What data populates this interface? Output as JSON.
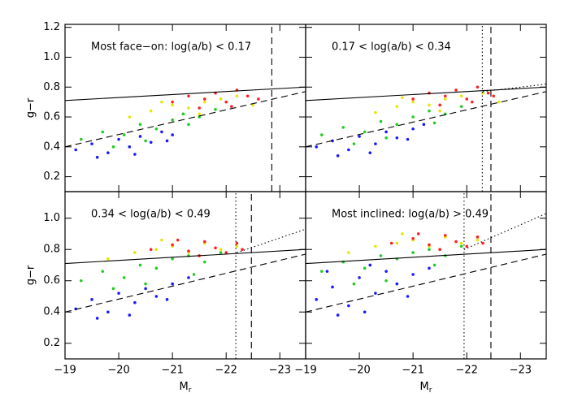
{
  "chart_data": [
    {
      "type": "scatter",
      "annotation": "Most face−on: log(a/b) < 0.17",
      "ylabel": "g−r",
      "xlim": [
        -19,
        -23.48
      ],
      "ylim": [
        0.1,
        1.22
      ],
      "xticks": [
        -19,
        -20,
        -21,
        -22,
        -23
      ],
      "show_xtick_labels": false,
      "yticks": [
        0.2,
        0.4,
        0.6,
        0.8,
        {
          "value": 1,
          "label": "1.0"
        },
        1.2
      ],
      "show_ytick_labels": true,
      "series": [
        {
          "color": "#1a1aff",
          "x": [
            -19.2,
            -19.5,
            -19.8,
            -20.0,
            -20.2,
            -20.4,
            -20.6,
            -20.8,
            -21.0,
            -19.6,
            -20.3,
            -20.9
          ],
          "y": [
            0.38,
            0.42,
            0.36,
            0.45,
            0.4,
            0.47,
            0.43,
            0.5,
            0.48,
            0.33,
            0.35,
            0.44
          ]
        },
        {
          "color": "#22cc22",
          "x": [
            -19.3,
            -19.7,
            -20.1,
            -20.4,
            -20.7,
            -21.0,
            -21.2,
            -21.5,
            -20.5,
            -19.9,
            -21.3,
            -21.8
          ],
          "y": [
            0.45,
            0.5,
            0.48,
            0.55,
            0.52,
            0.58,
            0.62,
            0.6,
            0.44,
            0.4,
            0.55,
            0.65
          ]
        },
        {
          "color": "#e6e600",
          "x": [
            -20.2,
            -20.6,
            -21.0,
            -21.3,
            -21.6,
            -21.9,
            -22.2,
            -20.8,
            -21.5,
            -22.5
          ],
          "y": [
            0.6,
            0.64,
            0.68,
            0.66,
            0.7,
            0.72,
            0.74,
            0.7,
            0.62,
            0.68
          ]
        },
        {
          "color": "#ff2020",
          "x": [
            -21.0,
            -21.3,
            -21.6,
            -21.8,
            -22.0,
            -22.2,
            -22.4,
            -21.5,
            -22.1,
            -22.6
          ],
          "y": [
            0.7,
            0.74,
            0.72,
            0.76,
            0.7,
            0.78,
            0.74,
            0.66,
            0.67,
            0.72
          ]
        }
      ],
      "lines": [
        {
          "style": "solid",
          "x": [
            -19,
            -23.48
          ],
          "y": [
            0.71,
            0.8
          ]
        },
        {
          "style": "dashed",
          "x": [
            -19,
            -23.48
          ],
          "y": [
            0.4,
            0.77
          ]
        },
        {
          "style": "dashed",
          "x": [
            -22.85,
            -22.85
          ],
          "y": [
            0.1,
            1.22
          ]
        }
      ]
    },
    {
      "type": "scatter",
      "annotation": "0.17 < log(a/b) < 0.34",
      "xlim": [
        -19,
        -23.48
      ],
      "ylim": [
        0.1,
        1.22
      ],
      "xticks": [
        -19,
        -20,
        -21,
        -22,
        -23
      ],
      "show_xtick_labels": false,
      "yticks": [
        0.2,
        0.4,
        0.6,
        0.8,
        1,
        1.2
      ],
      "show_ytick_labels": false,
      "series": [
        {
          "color": "#1a1aff",
          "x": [
            -19.2,
            -19.5,
            -19.8,
            -20.0,
            -20.3,
            -20.5,
            -20.7,
            -21.0,
            -19.6,
            -20.2,
            -20.9,
            -21.2
          ],
          "y": [
            0.4,
            0.44,
            0.38,
            0.47,
            0.42,
            0.5,
            0.46,
            0.52,
            0.34,
            0.36,
            0.45,
            0.55
          ]
        },
        {
          "color": "#22cc22",
          "x": [
            -19.3,
            -19.7,
            -20.1,
            -20.4,
            -20.7,
            -21.0,
            -21.3,
            -21.6,
            -20.5,
            -19.9,
            -21.4,
            -21.9
          ],
          "y": [
            0.48,
            0.53,
            0.5,
            0.57,
            0.55,
            0.6,
            0.64,
            0.62,
            0.46,
            0.42,
            0.56,
            0.67
          ]
        },
        {
          "color": "#e6e600",
          "x": [
            -20.3,
            -20.7,
            -21.0,
            -21.3,
            -21.6,
            -21.9,
            -22.3,
            -20.8,
            -21.5,
            -22.6
          ],
          "y": [
            0.63,
            0.67,
            0.7,
            0.68,
            0.72,
            0.74,
            0.76,
            0.73,
            0.64,
            0.7
          ]
        },
        {
          "color": "#ff2020",
          "x": [
            -21.0,
            -21.3,
            -21.6,
            -21.8,
            -22.0,
            -22.2,
            -22.4,
            -21.5,
            -22.1,
            -22.5
          ],
          "y": [
            0.72,
            0.76,
            0.74,
            0.78,
            0.72,
            0.8,
            0.76,
            0.68,
            0.7,
            0.74
          ]
        }
      ],
      "lines": [
        {
          "style": "solid",
          "x": [
            -19,
            -23.48
          ],
          "y": [
            0.71,
            0.8
          ]
        },
        {
          "style": "dashed",
          "x": [
            -19,
            -23.48
          ],
          "y": [
            0.4,
            0.77
          ]
        },
        {
          "style": "dotted",
          "x": [
            -22.3,
            -23.48
          ],
          "y": [
            0.77,
            0.82
          ]
        },
        {
          "style": "dotted",
          "x": [
            -22.29,
            -22.29
          ],
          "y": [
            0.1,
            1.22
          ]
        },
        {
          "style": "dashed",
          "x": [
            -22.45,
            -22.45
          ],
          "y": [
            0.1,
            1.22
          ]
        }
      ]
    },
    {
      "type": "scatter",
      "annotation": "0.34 < log(a/b) < 0.49",
      "ylabel": "g−r",
      "xlabel": "M",
      "xlabel_sub": "r",
      "xlim": [
        -19,
        -23.48
      ],
      "ylim": [
        0.1,
        1.17
      ],
      "xticks": [
        {
          "value": -19,
          "label": "−19"
        },
        {
          "value": -20,
          "label": "−20"
        },
        {
          "value": -21,
          "label": "−21"
        },
        {
          "value": -22,
          "label": "−22"
        },
        {
          "value": -23,
          "label": "−23"
        }
      ],
      "show_xtick_labels": true,
      "yticks": [
        0.2,
        0.4,
        0.6,
        0.8,
        {
          "value": 1,
          "label": "1.0"
        }
      ],
      "show_ytick_labels": true,
      "series": [
        {
          "color": "#1a1aff",
          "x": [
            -19.2,
            -19.5,
            -19.8,
            -20.0,
            -20.3,
            -20.5,
            -20.7,
            -21.0,
            -19.6,
            -20.2,
            -20.9,
            -21.3
          ],
          "y": [
            0.42,
            0.48,
            0.4,
            0.52,
            0.46,
            0.55,
            0.5,
            0.58,
            0.36,
            0.38,
            0.48,
            0.62
          ]
        },
        {
          "color": "#22cc22",
          "x": [
            -19.3,
            -19.7,
            -20.1,
            -20.4,
            -20.7,
            -21.0,
            -21.3,
            -21.6,
            -20.5,
            -19.9,
            -21.4,
            -21.9
          ],
          "y": [
            0.6,
            0.66,
            0.62,
            0.7,
            0.68,
            0.74,
            0.76,
            0.72,
            0.58,
            0.55,
            0.64,
            0.78
          ]
        },
        {
          "color": "#e6e600",
          "x": [
            -19.8,
            -20.3,
            -20.7,
            -21.0,
            -21.3,
            -21.6,
            -21.9,
            -22.2,
            -20.8,
            -21.5
          ],
          "y": [
            0.74,
            0.78,
            0.8,
            0.82,
            0.78,
            0.84,
            0.8,
            0.82,
            0.86,
            0.76
          ]
        },
        {
          "color": "#ff2020",
          "x": [
            -20.6,
            -21.0,
            -21.3,
            -21.6,
            -21.8,
            -22.0,
            -22.2,
            -21.5,
            -21.1,
            -22.3
          ],
          "y": [
            0.8,
            0.83,
            0.79,
            0.85,
            0.81,
            0.78,
            0.84,
            0.76,
            0.86,
            0.8
          ]
        }
      ],
      "lines": [
        {
          "style": "solid",
          "x": [
            -19,
            -23.48
          ],
          "y": [
            0.71,
            0.8
          ]
        },
        {
          "style": "dashed",
          "x": [
            -19,
            -23.48
          ],
          "y": [
            0.4,
            0.77
          ]
        },
        {
          "style": "dotted",
          "x": [
            -22.2,
            -23.48
          ],
          "y": [
            0.78,
            0.93
          ]
        },
        {
          "style": "dotted",
          "x": [
            -22.18,
            -22.18
          ],
          "y": [
            0.1,
            1.17
          ]
        },
        {
          "style": "dashed",
          "x": [
            -22.47,
            -22.47
          ],
          "y": [
            0.1,
            1.17
          ]
        }
      ]
    },
    {
      "type": "scatter",
      "annotation": "Most inclined: log(a/b) > 0.49",
      "xlabel": "M",
      "xlabel_sub": "r",
      "xlim": [
        -19,
        -23.48
      ],
      "ylim": [
        0.1,
        1.17
      ],
      "xticks": [
        {
          "value": -19,
          "label": "−19"
        },
        {
          "value": -20,
          "label": "−20"
        },
        {
          "value": -21,
          "label": "−21"
        },
        {
          "value": -22,
          "label": "−22"
        },
        {
          "value": -23,
          "label": "−23"
        }
      ],
      "show_xtick_labels": true,
      "yticks": [
        0.2,
        0.4,
        0.6,
        0.8,
        1
      ],
      "show_ytick_labels": false,
      "series": [
        {
          "color": "#1a1aff",
          "x": [
            -19.2,
            -19.5,
            -19.8,
            -20.0,
            -20.3,
            -20.5,
            -20.7,
            -21.0,
            -19.6,
            -20.2,
            -20.9,
            -21.3,
            -19.4,
            -20.1
          ],
          "y": [
            0.48,
            0.56,
            0.44,
            0.62,
            0.52,
            0.66,
            0.58,
            0.64,
            0.38,
            0.7,
            0.5,
            0.68,
            0.66,
            0.4
          ]
        },
        {
          "color": "#22cc22",
          "x": [
            -19.3,
            -19.7,
            -20.1,
            -20.4,
            -20.7,
            -21.0,
            -21.3,
            -21.6,
            -20.5,
            -19.9,
            -21.4,
            -21.9
          ],
          "y": [
            0.66,
            0.72,
            0.68,
            0.76,
            0.74,
            0.78,
            0.8,
            0.76,
            0.6,
            0.58,
            0.7,
            0.82
          ]
        },
        {
          "color": "#e6e600",
          "x": [
            -19.8,
            -20.3,
            -20.7,
            -21.0,
            -21.3,
            -21.6,
            -21.9,
            -22.2,
            -20.8,
            -21.5
          ],
          "y": [
            0.78,
            0.82,
            0.84,
            0.86,
            0.82,
            0.88,
            0.84,
            0.86,
            0.9,
            0.8
          ]
        },
        {
          "color": "#ff2020",
          "x": [
            -20.6,
            -21.0,
            -21.3,
            -21.6,
            -21.8,
            -22.0,
            -22.2,
            -21.5,
            -21.1,
            -22.3
          ],
          "y": [
            0.84,
            0.87,
            0.83,
            0.89,
            0.85,
            0.82,
            0.88,
            0.8,
            0.9,
            0.84
          ]
        }
      ],
      "lines": [
        {
          "style": "solid",
          "x": [
            -19,
            -23.48
          ],
          "y": [
            0.71,
            0.8
          ]
        },
        {
          "style": "dashed",
          "x": [
            -19,
            -23.48
          ],
          "y": [
            0.4,
            0.77
          ]
        },
        {
          "style": "dotted",
          "x": [
            -21.95,
            -23.48
          ],
          "y": [
            0.8,
            1.03
          ]
        },
        {
          "style": "dotted",
          "x": [
            -21.95,
            -21.95
          ],
          "y": [
            0.1,
            1.17
          ]
        },
        {
          "style": "dashed",
          "x": [
            -22.45,
            -22.45
          ],
          "y": [
            0.1,
            1.17
          ]
        }
      ]
    }
  ]
}
